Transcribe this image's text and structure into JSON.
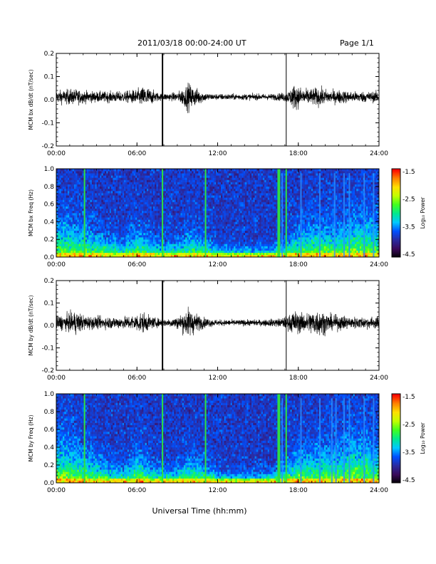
{
  "header": {
    "title": "2011/03/18  00:00-24:00 UT",
    "page": "Page 1/1"
  },
  "xlabel": "Universal Time (hh:mm)",
  "chart_data": [
    {
      "type": "line",
      "ylabel": "MCM bx dB/dt (nT/sec)",
      "xlim": [
        0,
        24
      ],
      "ylim": [
        -0.2,
        0.2
      ],
      "xticks": [
        "00:00",
        "06:00",
        "12:00",
        "18:00",
        "24:00"
      ],
      "yticks": [
        "-0.2",
        "-0.1",
        "0.0",
        "0.1",
        "0.2"
      ],
      "series": [
        {
          "x": [
            0,
            1,
            1.5,
            2,
            3,
            4,
            5,
            5.7,
            6,
            6.3,
            6.7,
            7,
            7.5,
            7.9,
            8.2,
            8.5,
            9,
            9.5,
            9.8,
            10,
            10.3,
            10.6,
            11,
            11.3,
            11.6,
            12,
            13,
            14,
            15,
            16,
            16.7,
            17.3,
            17.6,
            18,
            18.5,
            19,
            19.5,
            20,
            20.5,
            21,
            21.5,
            22,
            22.5,
            23,
            24
          ],
          "envelope": [
            0.04,
            0.05,
            0.05,
            0.04,
            0.035,
            0.035,
            0.035,
            0.045,
            0.05,
            0.06,
            0.07,
            0.05,
            0.03,
            0.02,
            0.025,
            0.025,
            0.03,
            0.06,
            0.09,
            0.08,
            0.06,
            0.05,
            0.03,
            0.025,
            0.02,
            0.02,
            0.02,
            0.02,
            0.02,
            0.02,
            0.025,
            0.04,
            0.08,
            0.07,
            0.05,
            0.055,
            0.06,
            0.05,
            0.04,
            0.045,
            0.04,
            0.035,
            0.035,
            0.035,
            0.035
          ],
          "spikes": [
            {
              "x": 7.9,
              "low": -0.2,
              "high": 0.2
            },
            {
              "x": 17.1,
              "low": -0.2,
              "high": 0.2
            }
          ]
        }
      ]
    },
    {
      "type": "heatmap",
      "ylabel": "MCM bx Freq (Hz)",
      "xlim": [
        0,
        24
      ],
      "ylim": [
        0,
        1
      ],
      "xticks": [
        "00:00",
        "06:00",
        "12:00",
        "18:00",
        "24:00"
      ],
      "yticks": [
        "0.0",
        "0.2",
        "0.4",
        "0.6",
        "0.8",
        "1.0"
      ],
      "colorbar": {
        "label": "Log₁₀ Power",
        "range": [
          -4.5,
          -1.5
        ],
        "ticks": [
          "-1.5",
          "-2.5",
          "-3.5",
          "-4.5"
        ],
        "colors": [
          "#000000",
          "#3a0a5a",
          "#2a2aa0",
          "#0050ff",
          "#00c8ff",
          "#00e890",
          "#40ff20",
          "#c0ff00",
          "#ffe000",
          "#ff8000",
          "#ff0000"
        ]
      },
      "activity_x": [
        0,
        1,
        2,
        3,
        4,
        5,
        6,
        7,
        8,
        9,
        10,
        11,
        12,
        13,
        14,
        15,
        16,
        17,
        18,
        19,
        20,
        21,
        22,
        23,
        24
      ],
      "activity_height": [
        0.25,
        0.22,
        0.2,
        0.15,
        0.12,
        0.1,
        0.18,
        0.12,
        0.08,
        0.1,
        0.15,
        0.12,
        0.07,
        0.06,
        0.06,
        0.06,
        0.07,
        0.1,
        0.18,
        0.2,
        0.22,
        0.2,
        0.26,
        0.28,
        0.22
      ],
      "green_lines": [
        2.1,
        7.9,
        11.1,
        16.5,
        16.6,
        17.1
      ],
      "cyan_lines": [
        16.8,
        18.2,
        19.6,
        20.7,
        21.4,
        21.8,
        22.9,
        23.6
      ]
    },
    {
      "type": "line",
      "ylabel": "MCM by dB/dt (nT/sec)",
      "xlim": [
        0,
        24
      ],
      "ylim": [
        -0.2,
        0.2
      ],
      "xticks": [
        "00:00",
        "06:00",
        "12:00",
        "18:00",
        "24:00"
      ],
      "yticks": [
        "-0.2",
        "-0.1",
        "0.0",
        "0.1",
        "0.2"
      ],
      "series": [
        {
          "x": [
            0,
            1,
            1.5,
            2,
            3,
            4,
            5,
            5.7,
            6,
            6.3,
            6.7,
            7,
            7.5,
            7.9,
            8.2,
            8.5,
            9,
            9.5,
            9.8,
            10,
            10.3,
            10.6,
            11,
            11.3,
            11.6,
            12,
            13,
            14,
            15,
            16,
            16.7,
            17.3,
            17.6,
            18,
            18.5,
            19,
            19.5,
            20,
            20.5,
            21,
            21.5,
            22,
            22.5,
            23,
            24
          ],
          "envelope": [
            0.045,
            0.06,
            0.08,
            0.05,
            0.04,
            0.04,
            0.04,
            0.05,
            0.06,
            0.07,
            0.06,
            0.04,
            0.03,
            0.025,
            0.025,
            0.03,
            0.04,
            0.07,
            0.1,
            0.09,
            0.07,
            0.05,
            0.035,
            0.03,
            0.025,
            0.02,
            0.02,
            0.02,
            0.02,
            0.025,
            0.03,
            0.05,
            0.08,
            0.07,
            0.06,
            0.08,
            0.09,
            0.07,
            0.05,
            0.05,
            0.045,
            0.04,
            0.04,
            0.04,
            0.04
          ],
          "spikes": [
            {
              "x": 7.9,
              "low": -0.2,
              "high": 0.2
            },
            {
              "x": 17.1,
              "low": -0.2,
              "high": 0.2
            }
          ]
        }
      ]
    },
    {
      "type": "heatmap",
      "ylabel": "MCM by Freq (Hz)",
      "xlim": [
        0,
        24
      ],
      "ylim": [
        0,
        1
      ],
      "xticks": [
        "00:00",
        "06:00",
        "12:00",
        "18:00",
        "24:00"
      ],
      "yticks": [
        "0.0",
        "0.2",
        "0.4",
        "0.6",
        "0.8",
        "1.0"
      ],
      "colorbar": {
        "label": "Log₁₀ Power",
        "range": [
          -4.5,
          -1.5
        ],
        "ticks": [
          "-1.5",
          "-2.5",
          "-3.5",
          "-4.5"
        ],
        "colors": [
          "#000000",
          "#3a0a5a",
          "#2a2aa0",
          "#0050ff",
          "#00c8ff",
          "#00e890",
          "#40ff20",
          "#c0ff00",
          "#ffe000",
          "#ff8000",
          "#ff0000"
        ]
      },
      "activity_x": [
        0,
        1,
        2,
        3,
        4,
        5,
        6,
        7,
        8,
        9,
        10,
        11,
        12,
        13,
        14,
        15,
        16,
        17,
        18,
        19,
        20,
        21,
        22,
        23,
        24
      ],
      "activity_height": [
        0.3,
        0.26,
        0.22,
        0.16,
        0.12,
        0.1,
        0.2,
        0.12,
        0.08,
        0.1,
        0.16,
        0.12,
        0.07,
        0.06,
        0.06,
        0.06,
        0.07,
        0.12,
        0.2,
        0.2,
        0.24,
        0.22,
        0.3,
        0.28,
        0.24
      ],
      "green_lines": [
        2.1,
        7.9,
        11.1,
        16.5,
        16.6,
        17.1
      ],
      "cyan_lines": [
        16.8,
        18.2,
        19.6,
        20.5,
        20.8,
        21.4,
        21.8,
        22.9,
        23.6
      ]
    }
  ]
}
